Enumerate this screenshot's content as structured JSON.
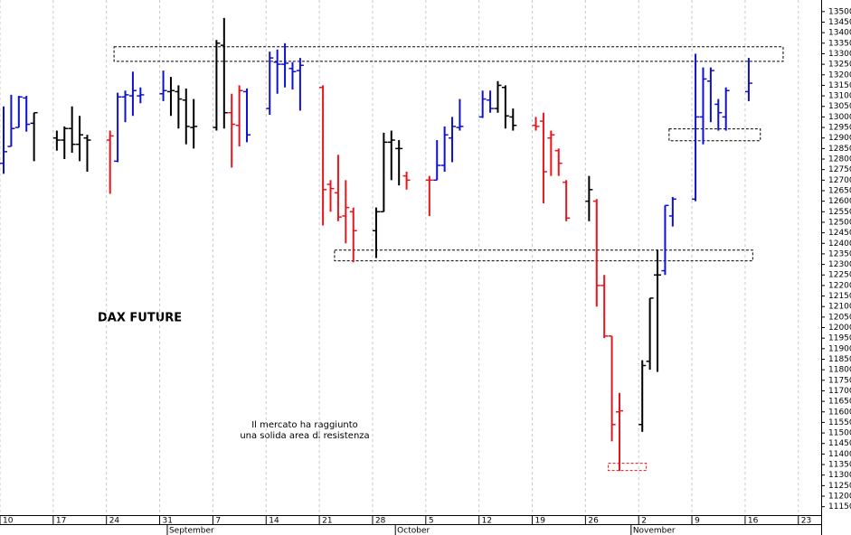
{
  "chart_data": {
    "type": "ohlc",
    "title": "DAX FUTURE",
    "annotation_lines": [
      "Il mercato ha raggiunto",
      "una solida area di resistenza"
    ],
    "x": [
      "08-10",
      "08-11",
      "08-12",
      "08-13",
      "08-14",
      "08-17",
      "08-18",
      "08-19",
      "08-20",
      "08-21",
      "08-24",
      "08-25",
      "08-26",
      "08-27",
      "08-28",
      "08-31",
      "09-01",
      "09-02",
      "09-03",
      "09-04",
      "09-07",
      "09-08",
      "09-09",
      "09-10",
      "09-11",
      "09-14",
      "09-15",
      "09-16",
      "09-17",
      "09-18",
      "09-21",
      "09-22",
      "09-23",
      "09-24",
      "09-25",
      "09-28",
      "09-29",
      "09-30",
      "10-01",
      "10-02",
      "10-05",
      "10-06",
      "10-07",
      "10-08",
      "10-09",
      "10-12",
      "10-13",
      "10-14",
      "10-15",
      "10-16",
      "10-19",
      "10-20",
      "10-21",
      "10-22",
      "10-23",
      "10-26",
      "10-27",
      "10-28",
      "10-29",
      "10-30",
      "11-02",
      "11-03",
      "11-04",
      "11-05",
      "11-06",
      "11-09",
      "11-10",
      "11-11",
      "11-12",
      "11-13",
      "11-16"
    ],
    "open": [
      12780,
      12860,
      12950,
      13090,
      12970,
      12900,
      12890,
      12945,
      12870,
      12900,
      12890,
      12790,
      13095,
      13100,
      13100,
      13110,
      13120,
      13120,
      13080,
      12950,
      12950,
      13340,
      13020,
      12960,
      13120,
      13040,
      13260,
      13250,
      13230,
      13220,
      13140,
      12680,
      12640,
      12530,
      12550,
      12460,
      12550,
      12880,
      12850,
      12720,
      12700,
      12700,
      12770,
      12900,
      12950,
      13000,
      13080,
      13040,
      13140,
      13000,
      12960,
      12980,
      12900,
      12840,
      12690,
      12600,
      12600,
      12200,
      11960,
      11600,
      11540,
      11840,
      12250,
      12270,
      12530,
      12610,
      13000,
      13170,
      13060,
      13000,
      13120
    ],
    "high": [
      13050,
      13105,
      13100,
      13100,
      13020,
      12935,
      12955,
      13050,
      13005,
      12915,
      12935,
      13115,
      13125,
      13215,
      13140,
      13220,
      13190,
      13150,
      13135,
      13085,
      13365,
      13470,
      13110,
      13150,
      13135,
      13310,
      13320,
      13350,
      13260,
      13280,
      13150,
      12700,
      12820,
      12700,
      12570,
      12570,
      12925,
      12935,
      12890,
      12740,
      12720,
      12890,
      12955,
      13000,
      13085,
      13125,
      13125,
      13170,
      13150,
      13040,
      13000,
      13020,
      12935,
      12850,
      12700,
      12720,
      12610,
      12250,
      11960,
      11690,
      11845,
      12140,
      12370,
      12580,
      12620,
      13300,
      13235,
      13235,
      13085,
      13140,
      13280
    ],
    "low": [
      12730,
      12860,
      12950,
      12930,
      12790,
      12840,
      12800,
      12830,
      12790,
      12740,
      12635,
      12785,
      12975,
      13005,
      13065,
      13075,
      13005,
      12945,
      12870,
      12850,
      12935,
      12945,
      12760,
      12860,
      12880,
      13010,
      13110,
      13140,
      13130,
      13030,
      12485,
      12550,
      12505,
      12400,
      12310,
      12330,
      12550,
      12700,
      12675,
      12655,
      12530,
      12700,
      12740,
      12785,
      12935,
      12995,
      13020,
      13020,
      12945,
      12935,
      12935,
      12590,
      12720,
      12720,
      12505,
      12505,
      12100,
      11950,
      11460,
      11320,
      11505,
      11800,
      11790,
      12250,
      12480,
      12600,
      12870,
      12975,
      12935,
      12935,
      13075
    ],
    "close": [
      12835,
      12945,
      13095,
      12965,
      13020,
      12890,
      12945,
      12870,
      12915,
      12890,
      12910,
      13095,
      13105,
      13125,
      13105,
      13125,
      13125,
      13085,
      12955,
      12955,
      13350,
      13020,
      12965,
      13125,
      12915,
      13280,
      13250,
      13255,
      13215,
      13245,
      12655,
      12660,
      12525,
      12570,
      12460,
      12550,
      12880,
      12890,
      12850,
      12700,
      12700,
      12770,
      12915,
      12955,
      12955,
      13085,
      13040,
      13150,
      13005,
      12960,
      12955,
      12740,
      12915,
      12780,
      12520,
      12655,
      12200,
      11960,
      11540,
      11605,
      11820,
      12140,
      12250,
      12580,
      12610,
      13000,
      13180,
      13220,
      13020,
      13125,
      13160
    ],
    "colors": [
      "#1010d0",
      "#1010d0",
      "#1010d0",
      "#1010d0",
      "#000000",
      "#000000",
      "#000000",
      "#000000",
      "#000000",
      "#000000",
      "#e8141e",
      "#1010d0",
      "#1010d0",
      "#1010d0",
      "#1010d0",
      "#1010d0",
      "#000000",
      "#000000",
      "#000000",
      "#000000",
      "#000000",
      "#000000",
      "#e8141e",
      "#e8141e",
      "#1010d0",
      "#1010d0",
      "#1010d0",
      "#1010d0",
      "#1010d0",
      "#1010d0",
      "#e8141e",
      "#e8141e",
      "#e8141e",
      "#e8141e",
      "#e8141e",
      "#000000",
      "#000000",
      "#000000",
      "#000000",
      "#e8141e",
      "#e8141e",
      "#1010d0",
      "#1010d0",
      "#1010d0",
      "#1010d0",
      "#1010d0",
      "#1010d0",
      "#000000",
      "#000000",
      "#000000",
      "#e8141e",
      "#e8141e",
      "#e8141e",
      "#e8141e",
      "#e8141e",
      "#000000",
      "#e8141e",
      "#e8141e",
      "#e8141e",
      "#e8141e",
      "#000000",
      "#000000",
      "#000000",
      "#1010d0",
      "#1010d0",
      "#1010d0",
      "#1010d0",
      "#1010d0",
      "#1010d0",
      "#1010d0",
      "#1010d0"
    ],
    "zones": [
      {
        "x": [
          "08-25",
          "11-21"
        ],
        "y": [
          13264,
          13333
        ],
        "color": "#000000"
      },
      {
        "x": [
          "09-23",
          "11-17"
        ],
        "y": [
          12317,
          12368
        ],
        "color": "#000000"
      },
      {
        "x": [
          "11-06",
          "11-18"
        ],
        "y": [
          12887,
          12943
        ],
        "color": "#000000"
      },
      {
        "x": [
          "10-29",
          "11-03"
        ],
        "y": [
          11322,
          11356
        ],
        "color": "#e8141e"
      }
    ],
    "xlim": [
      "08-10",
      "11-26"
    ],
    "xticks": [
      {
        "value": "08-10",
        "label": "10"
      },
      {
        "value": "08-17",
        "label": "17"
      },
      {
        "value": "08-24",
        "label": "24"
      },
      {
        "value": "08-31",
        "label": "31"
      },
      {
        "value": "09-07",
        "label": "7"
      },
      {
        "value": "09-14",
        "label": "14"
      },
      {
        "value": "09-21",
        "label": "21"
      },
      {
        "value": "09-28",
        "label": "28"
      },
      {
        "value": "10-05",
        "label": "5"
      },
      {
        "value": "10-12",
        "label": "12"
      },
      {
        "value": "10-19",
        "label": "19"
      },
      {
        "value": "10-26",
        "label": "26"
      },
      {
        "value": "11-02",
        "label": "2"
      },
      {
        "value": "11-09",
        "label": "9"
      },
      {
        "value": "11-16",
        "label": "16"
      },
      {
        "value": "11-23",
        "label": "23"
      }
    ],
    "months": [
      {
        "value": "09-01",
        "label": "September"
      },
      {
        "value": "10-01",
        "label": "October"
      },
      {
        "value": "11-01",
        "label": "November"
      }
    ],
    "ylim": [
      11110,
      13555
    ],
    "yticks": [
      11150,
      11200,
      11250,
      11300,
      11350,
      11400,
      11450,
      11500,
      11550,
      11600,
      11650,
      11700,
      11750,
      11800,
      11850,
      11900,
      11950,
      12000,
      12050,
      12100,
      12150,
      12200,
      12250,
      12300,
      12350,
      12400,
      12450,
      12500,
      12550,
      12600,
      12650,
      12700,
      12750,
      12800,
      12850,
      12900,
      12950,
      13000,
      13050,
      13100,
      13150,
      13200,
      13250,
      13300,
      13350,
      13400,
      13450,
      13500
    ],
    "grid": true
  }
}
